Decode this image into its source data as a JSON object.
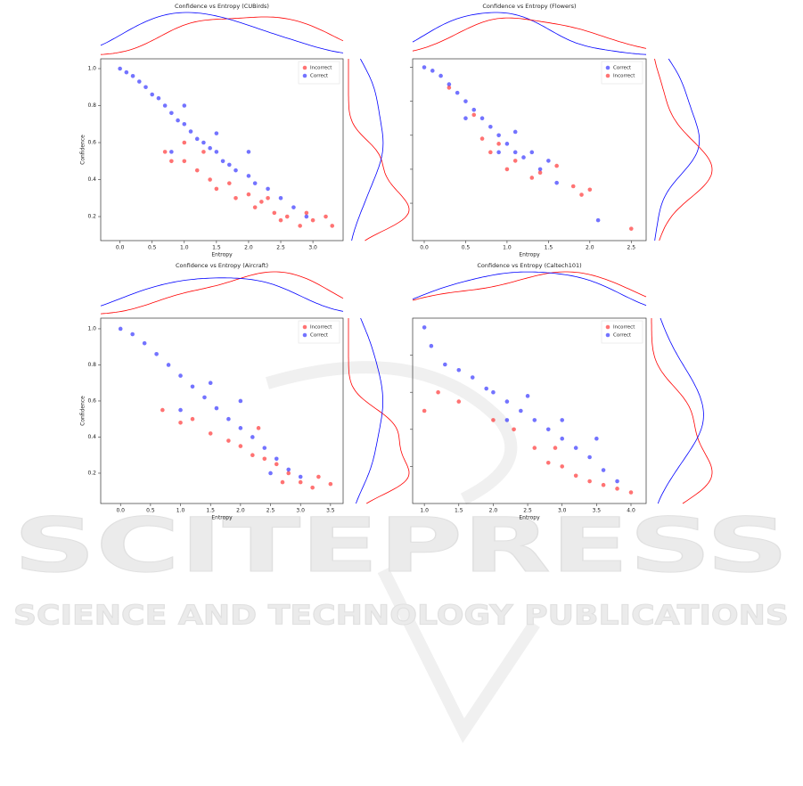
{
  "chart_data": [
    {
      "type": "scatter",
      "title": "Confidence vs Entropy (CUBirds)",
      "x_label": "Entropy",
      "y_label": "Confidence",
      "xlim": [
        -0.3,
        3.47
      ],
      "ylim": [
        0.07,
        1.053
      ],
      "xticks": [
        {
          "value": 0,
          "label": "0.0"
        },
        0.5,
        {
          "value": 1,
          "label": "1.0"
        },
        1.5,
        {
          "value": 2,
          "label": "2.0"
        },
        2.5,
        {
          "value": 3,
          "label": "3.0"
        }
      ],
      "yticks": [
        0.2,
        0.4,
        0.6,
        0.8,
        {
          "value": 1,
          "label": "1.0"
        }
      ],
      "series": [
        {
          "name": "Incorrect",
          "color": "#ff0000",
          "x": [
            0.7,
            0.8,
            1.0,
            1.2,
            1.4,
            1.5,
            1.7,
            1.8,
            2.0,
            2.1,
            2.2,
            2.4,
            2.5,
            2.6,
            2.8,
            3.0,
            3.2,
            3.3,
            1.0,
            1.3,
            2.3,
            2.9
          ],
          "values": [
            0.55,
            0.5,
            0.5,
            0.45,
            0.4,
            0.35,
            0.38,
            0.3,
            0.32,
            0.25,
            0.28,
            0.22,
            0.18,
            0.2,
            0.15,
            0.18,
            0.2,
            0.15,
            0.6,
            0.55,
            0.3,
            0.22
          ]
        },
        {
          "name": "Correct",
          "color": "#0000ff",
          "x": [
            0.0,
            0.1,
            0.2,
            0.3,
            0.4,
            0.5,
            0.6,
            0.7,
            0.8,
            0.9,
            1.0,
            1.1,
            1.2,
            1.3,
            1.4,
            1.5,
            1.6,
            1.7,
            1.8,
            2.0,
            2.1,
            2.3,
            2.5,
            2.7,
            2.9,
            1.0,
            1.5,
            2.0,
            0.8
          ],
          "values": [
            1.0,
            0.98,
            0.96,
            0.93,
            0.9,
            0.86,
            0.84,
            0.8,
            0.76,
            0.72,
            0.7,
            0.66,
            0.62,
            0.6,
            0.57,
            0.55,
            0.5,
            0.48,
            0.45,
            0.42,
            0.38,
            0.35,
            0.3,
            0.25,
            0.2,
            0.8,
            0.65,
            0.55,
            0.55
          ]
        }
      ]
    },
    {
      "type": "scatter",
      "title": "Confidence vs Entropy (Flowers)",
      "x_label": "Entropy",
      "xlim": [
        -0.14,
        2.68
      ],
      "ylim": [
        -0.02,
        1.05
      ],
      "xticks": [
        {
          "value": 0,
          "label": "0.0"
        },
        0.5,
        {
          "value": 1,
          "label": "1.0"
        },
        1.5,
        {
          "value": 2,
          "label": "2.0"
        },
        2.5
      ],
      "yticks": [
        0.2,
        0.4,
        0.6,
        0.8,
        1
      ],
      "series": [
        {
          "name": "Correct",
          "color": "#0000ff",
          "x": [
            0.0,
            0.1,
            0.2,
            0.3,
            0.4,
            0.5,
            0.6,
            0.7,
            0.8,
            0.9,
            1.0,
            1.1,
            1.2,
            1.3,
            1.5,
            1.6,
            0.5,
            0.9,
            1.1,
            2.1,
            1.4
          ],
          "values": [
            1.0,
            0.98,
            0.95,
            0.9,
            0.85,
            0.8,
            0.75,
            0.7,
            0.65,
            0.6,
            0.55,
            0.5,
            0.47,
            0.5,
            0.45,
            0.32,
            0.7,
            0.5,
            0.62,
            0.1,
            0.4
          ]
        },
        {
          "name": "Incorrect",
          "color": "#ff0000",
          "x": [
            0.3,
            0.6,
            0.7,
            0.8,
            1.0,
            1.1,
            1.3,
            1.4,
            1.6,
            1.8,
            1.9,
            2.0,
            2.5,
            0.9
          ],
          "values": [
            0.88,
            0.72,
            0.58,
            0.5,
            0.4,
            0.45,
            0.35,
            0.38,
            0.42,
            0.3,
            0.25,
            0.28,
            0.05,
            0.55
          ]
        }
      ]
    },
    {
      "type": "scatter",
      "title": "Confidence vs Entropy (Aircraft)",
      "x_label": "Entropy",
      "y_label": "Confidence",
      "xlim": [
        -0.33,
        3.71
      ],
      "ylim": [
        0.032,
        1.059
      ],
      "xticks": [
        {
          "value": 0,
          "label": "0.0"
        },
        0.5,
        {
          "value": 1,
          "label": "1.0"
        },
        1.5,
        {
          "value": 2,
          "label": "2.0"
        },
        2.5,
        {
          "value": 3,
          "label": "3.0"
        },
        3.5
      ],
      "yticks": [
        0.2,
        0.4,
        0.6,
        0.8,
        {
          "value": 1,
          "label": "1.0"
        }
      ],
      "series": [
        {
          "name": "Incorrect",
          "color": "#ff0000",
          "x": [
            0.7,
            1.0,
            1.2,
            1.5,
            1.8,
            2.0,
            2.2,
            2.4,
            2.6,
            2.8,
            3.0,
            3.2,
            3.5,
            2.3,
            2.7,
            3.3
          ],
          "values": [
            0.55,
            0.48,
            0.5,
            0.42,
            0.38,
            0.35,
            0.3,
            0.28,
            0.25,
            0.2,
            0.15,
            0.12,
            0.14,
            0.45,
            0.15,
            0.18
          ]
        },
        {
          "name": "Correct",
          "color": "#0000ff",
          "x": [
            0.0,
            0.2,
            0.4,
            0.6,
            0.8,
            1.0,
            1.2,
            1.4,
            1.6,
            1.8,
            2.0,
            2.2,
            2.4,
            2.6,
            2.8,
            3.0,
            1.5,
            1.0,
            2.0,
            2.5
          ],
          "values": [
            1.0,
            0.97,
            0.92,
            0.86,
            0.8,
            0.74,
            0.68,
            0.62,
            0.56,
            0.5,
            0.45,
            0.4,
            0.34,
            0.28,
            0.22,
            0.18,
            0.7,
            0.55,
            0.6,
            0.2
          ]
        }
      ]
    },
    {
      "type": "scatter",
      "title": "Confidence vs Entropy (Caltech101)",
      "x_label": "Entropy",
      "xlim": [
        0.83,
        4.22
      ],
      "ylim": [
        0,
        1
      ],
      "xticks": [
        {
          "value": 1,
          "label": "1.0"
        },
        1.5,
        {
          "value": 2,
          "label": "2.0"
        },
        2.5,
        {
          "value": 3,
          "label": "3.0"
        },
        3.5,
        {
          "value": 4,
          "label": "4.0"
        }
      ],
      "yticks": [
        0.2,
        0.4,
        0.6,
        0.8
      ],
      "series": [
        {
          "name": "Incorrect",
          "color": "#ff0000",
          "x": [
            1.0,
            1.2,
            1.5,
            2.0,
            2.3,
            2.6,
            2.8,
            3.0,
            3.2,
            3.4,
            3.6,
            3.8,
            4.0,
            2.9
          ],
          "values": [
            0.5,
            0.6,
            0.55,
            0.45,
            0.4,
            0.3,
            0.22,
            0.2,
            0.15,
            0.12,
            0.1,
            0.08,
            0.06,
            0.3
          ]
        },
        {
          "name": "Correct",
          "color": "#0000ff",
          "x": [
            1.0,
            1.1,
            1.3,
            1.5,
            1.7,
            1.9,
            2.0,
            2.2,
            2.4,
            2.6,
            2.8,
            3.0,
            3.2,
            3.4,
            3.6,
            3.8,
            2.5,
            3.0,
            2.2,
            3.5
          ],
          "values": [
            0.95,
            0.85,
            0.75,
            0.72,
            0.68,
            0.62,
            0.6,
            0.55,
            0.5,
            0.45,
            0.4,
            0.35,
            0.3,
            0.25,
            0.18,
            0.12,
            0.58,
            0.45,
            0.45,
            0.35
          ]
        }
      ]
    }
  ],
  "watermark": {
    "title": "SCITEPRESS",
    "subtitle": "SCIENCE AND TECHNOLOGY PUBLICATIONS"
  }
}
